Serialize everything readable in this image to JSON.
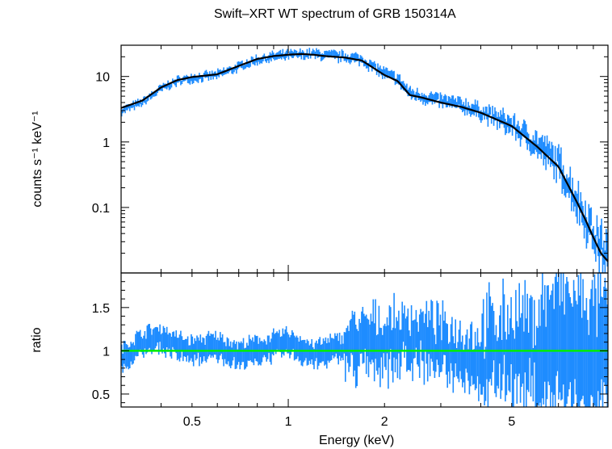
{
  "chart_data": [
    {
      "panel": "top",
      "type": "line",
      "title": "Swift–XRT WT spectrum of GRB 150314A",
      "ylabel": "counts s⁻¹ keV⁻¹",
      "xscale": "log",
      "yscale": "log",
      "xlim": [
        0.3,
        10
      ],
      "ylim": [
        0.01,
        30
      ],
      "ytick_labels": [
        {
          "value": 10,
          "label": "10"
        },
        {
          "value": 1,
          "label": "1"
        },
        {
          "value": 0.1,
          "label": "0.1"
        }
      ],
      "series": [
        {
          "name": "data",
          "color": "#1e8cff",
          "x": [
            0.3,
            0.35,
            0.4,
            0.45,
            0.5,
            0.6,
            0.7,
            0.8,
            0.9,
            1.0,
            1.1,
            1.2,
            1.3,
            1.5,
            1.7,
            2.0,
            2.2,
            2.4,
            2.6,
            3.0,
            3.5,
            4.0,
            5.0,
            6.0,
            7.0,
            8.0,
            8.5,
            9.0,
            9.5,
            10.0
          ],
          "y": [
            3.0,
            4.0,
            6.5,
            8.5,
            9.5,
            10.5,
            14,
            18,
            20,
            21,
            21.5,
            22,
            21,
            20,
            18,
            11,
            9,
            5.5,
            5,
            4.2,
            3.6,
            2.9,
            1.8,
            0.9,
            0.45,
            0.13,
            0.07,
            0.04,
            0.025,
            0.018
          ]
        },
        {
          "name": "model",
          "color": "#000000",
          "x": [
            0.3,
            0.35,
            0.4,
            0.45,
            0.5,
            0.6,
            0.7,
            0.8,
            0.9,
            1.0,
            1.1,
            1.2,
            1.3,
            1.5,
            1.7,
            2.0,
            2.2,
            2.4,
            2.6,
            3.0,
            3.5,
            4.0,
            5.0,
            6.0,
            7.0,
            8.0,
            8.5,
            9.0,
            9.5,
            10.0
          ],
          "y": [
            3.3,
            4.3,
            6.8,
            8.8,
            9.8,
            10.8,
            14.5,
            18.5,
            20.5,
            21.5,
            22,
            21.5,
            20.5,
            19.5,
            17.5,
            10.5,
            8.5,
            5.2,
            4.8,
            4.0,
            3.4,
            2.8,
            1.75,
            0.85,
            0.42,
            0.12,
            0.065,
            0.035,
            0.02,
            0.015
          ]
        }
      ]
    },
    {
      "panel": "bottom",
      "type": "line",
      "xlabel": "Energy (keV)",
      "ylabel": "ratio",
      "xscale": "log",
      "xlim": [
        0.3,
        10
      ],
      "ylim": [
        0.35,
        1.9
      ],
      "xtick_labels": [
        {
          "value": 0.5,
          "label": "0.5"
        },
        {
          "value": 1,
          "label": "1"
        },
        {
          "value": 2,
          "label": "2"
        },
        {
          "value": 5,
          "label": "5"
        }
      ],
      "ytick_labels": [
        {
          "value": 1.5,
          "label": "1.5"
        },
        {
          "value": 1,
          "label": "1"
        },
        {
          "value": 0.5,
          "label": "0.5"
        }
      ],
      "series": [
        {
          "name": "ratio",
          "color": "#1e8cff",
          "x": [
            0.3,
            0.35,
            0.4,
            0.45,
            0.5,
            0.6,
            0.7,
            0.8,
            0.9,
            1.0,
            1.2,
            1.5,
            2.0,
            2.5,
            3.0,
            4.0,
            5.0,
            6.0,
            7.0,
            8.0,
            9.0,
            10.0
          ],
          "y": [
            0.9,
            1.1,
            1.15,
            1.05,
            1.0,
            1.05,
            0.95,
            1.0,
            1.05,
            1.1,
            0.95,
            1.05,
            1.1,
            1.15,
            1.05,
            0.9,
            1.05,
            0.95,
            1.1,
            1.0,
            0.9,
            1.0
          ]
        },
        {
          "name": "unity",
          "color": "#00ee00",
          "x": [
            0.3,
            10.0
          ],
          "y": [
            1.0,
            1.0
          ]
        }
      ]
    }
  ]
}
